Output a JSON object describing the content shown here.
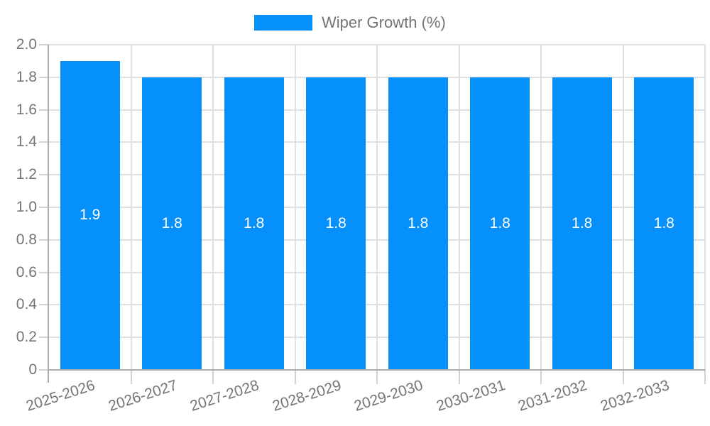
{
  "chart_data": {
    "type": "bar",
    "title": "",
    "legend": {
      "label": "Wiper Growth (%)",
      "position": "top"
    },
    "categories": [
      "2025-2026",
      "2026-2027",
      "2027-2028",
      "2028-2029",
      "2029-2030",
      "2030-2031",
      "2031-2032",
      "2032-2033"
    ],
    "series": [
      {
        "name": "Wiper Growth (%)",
        "values": [
          1.9,
          1.8,
          1.8,
          1.8,
          1.8,
          1.8,
          1.8,
          1.8
        ]
      }
    ],
    "value_labels": [
      "1.9",
      "1.8",
      "1.8",
      "1.8",
      "1.8",
      "1.8",
      "1.8",
      "1.8"
    ],
    "xlabel": "",
    "ylabel": "",
    "ylim": [
      0,
      2
    ],
    "ytick_step": 0.2,
    "yticks": [
      {
        "value": 0,
        "label": "0"
      },
      {
        "value": 0.2,
        "label": "0.2"
      },
      {
        "value": 0.4,
        "label": "0.4"
      },
      {
        "value": 0.6,
        "label": "0.6"
      },
      {
        "value": 0.8,
        "label": "0.8"
      },
      {
        "value": 1.0,
        "label": "1.0"
      },
      {
        "value": 1.2,
        "label": "1.2"
      },
      {
        "value": 1.4,
        "label": "1.4"
      },
      {
        "value": 1.6,
        "label": "1.6"
      },
      {
        "value": 1.8,
        "label": "1.8"
      },
      {
        "value": 2.0,
        "label": "2.0"
      }
    ],
    "grid": true,
    "x_label_rotation_deg": -18,
    "colors": {
      "bar": "#0590fb",
      "value_label": "#ffffff",
      "axis_text": "#757575",
      "grid_line": "#e0e0e0",
      "tick_line": "#d2d2d2",
      "axis_line": "#ababab",
      "background": "#ffffff"
    }
  }
}
